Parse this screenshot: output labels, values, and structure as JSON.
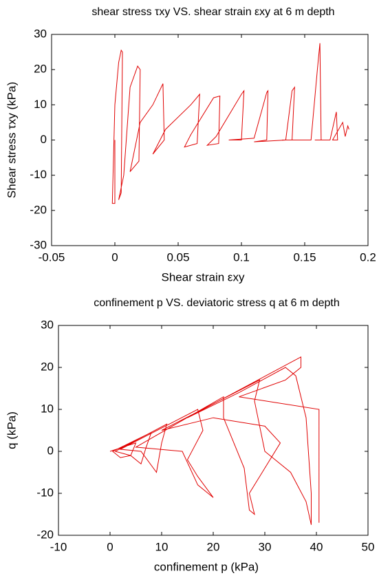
{
  "chart_data": [
    {
      "type": "line",
      "title": "shear stress τxy VS. shear strain εxy at 6 m depth",
      "xlabel": "Shear strain εxy",
      "ylabel": "Shear stress τxy (kPa)",
      "xlim": [
        -0.05,
        0.2
      ],
      "xticks": [
        -0.05,
        0,
        0.05,
        0.1,
        0.15,
        0.2
      ],
      "ylim": [
        -30,
        30
      ],
      "yticks": [
        -30,
        -20,
        -10,
        0,
        10,
        20,
        30
      ],
      "x": [
        0,
        0,
        -0.002,
        0,
        0.003,
        0.005,
        0.006,
        0.005,
        0.003,
        0.007,
        0.012,
        0.018,
        0.02,
        0.019,
        0.012,
        0.02,
        0.03,
        0.038,
        0.039,
        0.03,
        0.04,
        0.06,
        0.067,
        0.065,
        0.055,
        0.06,
        0.078,
        0.083,
        0.082,
        0.073,
        0.08,
        0.1,
        0.102,
        0.1,
        0.09,
        0.11,
        0.12,
        0.121,
        0.12,
        0.11,
        0.135,
        0.14,
        0.142,
        0.14,
        0.132,
        0.155,
        0.16,
        0.162,
        0.163,
        0.158,
        0.17,
        0.175,
        0.176,
        0.172,
        0.18,
        0.182,
        0.184,
        0.185
      ],
      "series": [
        {
          "color": "#e00000",
          "values": [
            0,
            -18,
            -18,
            10,
            22,
            25.5,
            25,
            -15,
            -17,
            -10,
            15,
            21,
            20,
            -6,
            -9,
            5,
            10,
            16,
            0,
            -4,
            3,
            10,
            13,
            -1,
            -2,
            1.5,
            12,
            12.5,
            -1,
            -1.5,
            1,
            13,
            14,
            0,
            0,
            0.5,
            13.5,
            14,
            0,
            -0.5,
            0,
            14,
            15,
            0,
            0,
            0,
            20,
            27.5,
            0,
            0,
            0,
            8,
            0,
            0,
            5,
            1,
            4,
            3
          ]
        }
      ]
    },
    {
      "type": "line",
      "title": "confinement p VS. deviatoric stress q at 6 m depth",
      "xlabel": "confinement p (kPa)",
      "ylabel": "q (kPa)",
      "xlim": [
        -10,
        50
      ],
      "xticks": [
        -10,
        0,
        10,
        20,
        30,
        40,
        50
      ],
      "ylim": [
        -20,
        30
      ],
      "yticks": [
        -20,
        -10,
        0,
        10,
        20,
        30
      ],
      "x": [
        0,
        5,
        4,
        2,
        0.5,
        8,
        7,
        6,
        4,
        1,
        11,
        10,
        9,
        6,
        2,
        17,
        18,
        15,
        17,
        20,
        19,
        17,
        14,
        5,
        22,
        22,
        26,
        27,
        28,
        27,
        30,
        33,
        30,
        20,
        10,
        29,
        28,
        30,
        35,
        38,
        39,
        39,
        38,
        36,
        34,
        25,
        15,
        37,
        37,
        34,
        25,
        40.5,
        40.5
      ],
      "series": [
        {
          "color": "#e00000",
          "values": [
            0,
            2,
            -1,
            -1.5,
            0,
            4.5,
            1,
            -3,
            -1,
            0,
            6.5,
            2,
            -5,
            0,
            0.5,
            10,
            5,
            -2,
            -6,
            -11,
            -10,
            -8,
            0,
            1,
            13,
            8,
            -4,
            -14,
            -15,
            -10,
            -4,
            2,
            6,
            8,
            5,
            17,
            12,
            0,
            -5,
            -12,
            -17.5,
            -10,
            8,
            18,
            20,
            14,
            8,
            22.5,
            20,
            17,
            13,
            10,
            -17
          ]
        }
      ]
    }
  ]
}
